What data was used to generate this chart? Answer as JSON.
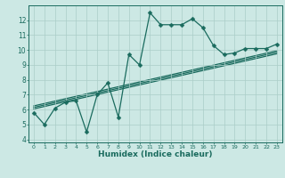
{
  "xlabel": "Humidex (Indice chaleur)",
  "xlim": [
    -0.5,
    23.5
  ],
  "ylim": [
    3.8,
    13.0
  ],
  "yticks": [
    4,
    5,
    6,
    7,
    8,
    9,
    10,
    11,
    12
  ],
  "xticks": [
    0,
    1,
    2,
    3,
    4,
    5,
    6,
    7,
    8,
    9,
    10,
    11,
    12,
    13,
    14,
    15,
    16,
    17,
    18,
    19,
    20,
    21,
    22,
    23
  ],
  "bg_color": "#cce8e4",
  "line_color": "#1a6b5e",
  "grid_color": "#aacdc8",
  "line_data": [
    [
      0,
      5.8
    ],
    [
      1,
      5.0
    ],
    [
      2,
      6.1
    ],
    [
      3,
      6.5
    ],
    [
      4,
      6.6
    ],
    [
      5,
      4.5
    ],
    [
      6,
      7.0
    ],
    [
      7,
      7.8
    ],
    [
      8,
      5.5
    ],
    [
      9,
      9.7
    ],
    [
      10,
      9.0
    ],
    [
      11,
      12.5
    ],
    [
      12,
      11.7
    ],
    [
      13,
      11.7
    ],
    [
      14,
      11.7
    ],
    [
      15,
      12.1
    ],
    [
      16,
      11.5
    ],
    [
      17,
      10.3
    ],
    [
      18,
      9.7
    ],
    [
      19,
      9.8
    ],
    [
      20,
      10.1
    ],
    [
      21,
      10.1
    ],
    [
      22,
      10.1
    ],
    [
      23,
      10.4
    ]
  ],
  "reg_lines": [
    [
      [
        0,
        6.05
      ],
      [
        23,
        9.75
      ]
    ],
    [
      [
        0,
        6.15
      ],
      [
        23,
        9.85
      ]
    ],
    [
      [
        0,
        6.25
      ],
      [
        23,
        9.95
      ]
    ]
  ],
  "marker_size": 2.5,
  "linewidth": 0.9
}
